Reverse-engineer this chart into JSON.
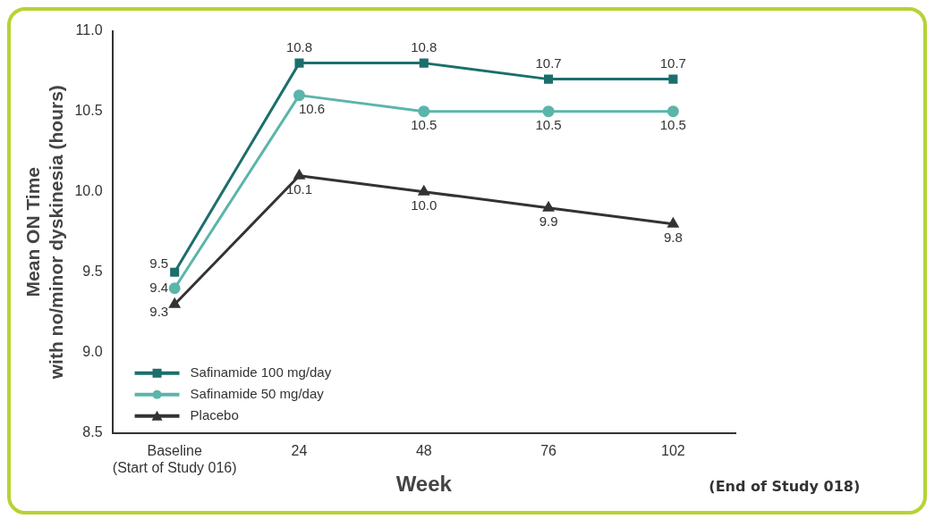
{
  "chart_data": {
    "type": "line",
    "xlabel": "Week",
    "ylabel": "Mean ON Time\nwith no/minor dyskinesia (hours)",
    "categories": [
      "Baseline\n(Start of Study 016)",
      "24",
      "48",
      "76",
      "102"
    ],
    "series": [
      {
        "name": "Safinamide 100 mg/day",
        "color": "#1b6f6c",
        "marker": "square",
        "values": [
          9.5,
          10.8,
          10.8,
          10.7,
          10.7
        ],
        "value_labels": [
          "9.5",
          "10.8",
          "10.8",
          "10.7",
          "10.7"
        ]
      },
      {
        "name": "Safinamide 50 mg/day",
        "color": "#5bb5ab",
        "marker": "circle",
        "values": [
          9.4,
          10.6,
          10.5,
          10.5,
          10.5
        ],
        "value_labels": [
          "9.4",
          "10.6",
          "10.5",
          "10.5",
          "10.5"
        ]
      },
      {
        "name": "Placebo",
        "color": "#333333",
        "marker": "triangle",
        "values": [
          9.3,
          10.1,
          10.0,
          9.9,
          9.8
        ],
        "value_labels": [
          "9.3",
          "10.1",
          "10.0",
          "9.9",
          "9.8"
        ]
      }
    ],
    "ylim": [
      8.5,
      11.0
    ],
    "yticks": [
      {
        "value": 8.5,
        "label": "8.5"
      },
      {
        "value": 9,
        "label": "9.0"
      },
      {
        "value": 9.5,
        "label": "9.5"
      },
      {
        "value": 10,
        "label": "10.0"
      },
      {
        "value": 10.5,
        "label": "10.5"
      },
      {
        "value": 11,
        "label": "11.0"
      }
    ],
    "grid": false,
    "legend": "bottom left",
    "line_style": "solid",
    "annotations": [
      "(End of Study 018)"
    ]
  }
}
